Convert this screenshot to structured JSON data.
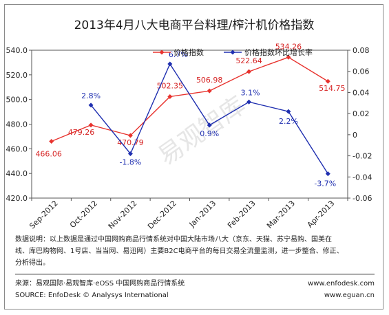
{
  "chart_data": {
    "type": "line",
    "title": "2013年4月八大电商平台料理/榨汁机价格指数",
    "categories": [
      "Sep-2012",
      "Oct-2012",
      "Nov-2012",
      "Dec-2012",
      "Jan-2013",
      "Feb-2013",
      "Mar-2013",
      "Apr-2013"
    ],
    "left_axis": {
      "range": [
        420.0,
        540.0
      ],
      "ticks": [
        "540.0",
        "520.0",
        "500.0",
        "480.0",
        "460.0",
        "440.0",
        "420.0"
      ]
    },
    "right_axis": {
      "range": [
        -0.06,
        0.08
      ],
      "ticks": [
        "0.08",
        "0.06",
        "0.04",
        "0.02",
        "0",
        "-0.02",
        "-0.04",
        "-0.06"
      ]
    },
    "legend_position": "top-right",
    "series": [
      {
        "name": "价格指数",
        "axis": "left",
        "color": "#e8332e",
        "values": [
          466.06,
          479.26,
          470.79,
          502.35,
          506.98,
          522.64,
          534.26,
          514.75
        ],
        "labels": [
          "466.06",
          "479.26",
          "470.79",
          "502.35",
          "506.98",
          "522.64",
          "534.26",
          "514.75"
        ]
      },
      {
        "name": "价格指数环比增长率",
        "axis": "right",
        "color": "#1f2fb0",
        "values": [
          null,
          0.028,
          -0.018,
          0.067,
          0.009,
          0.031,
          0.022,
          -0.037
        ],
        "labels": [
          "",
          "2.8%",
          "-1.8%",
          "6.7%",
          "0.9%",
          "3.1%",
          "2.2%",
          "-3.7%"
        ]
      }
    ],
    "grid": false
  },
  "watermark": "易观智库",
  "footnote": {
    "line1": "数据说明：以上数据是通过中国网购商品行情系统对中国大陆市场八大（京东、天猫、苏宁易购、国美在",
    "line2": "线、库巴购物网、1号店、当当网、易迅网）主要B2C电商平台的每日交易全流量监测，进一步整合、修正、",
    "line3": "分析得出。"
  },
  "source": {
    "cn": "来源：易观国际·易观智库·eOSS 中国网购商品行情系统",
    "en": "SOURCE: EnfoDesk © Analysys International",
    "site1": "www.enfodesk.com",
    "site2": "www.eguan.cn"
  }
}
